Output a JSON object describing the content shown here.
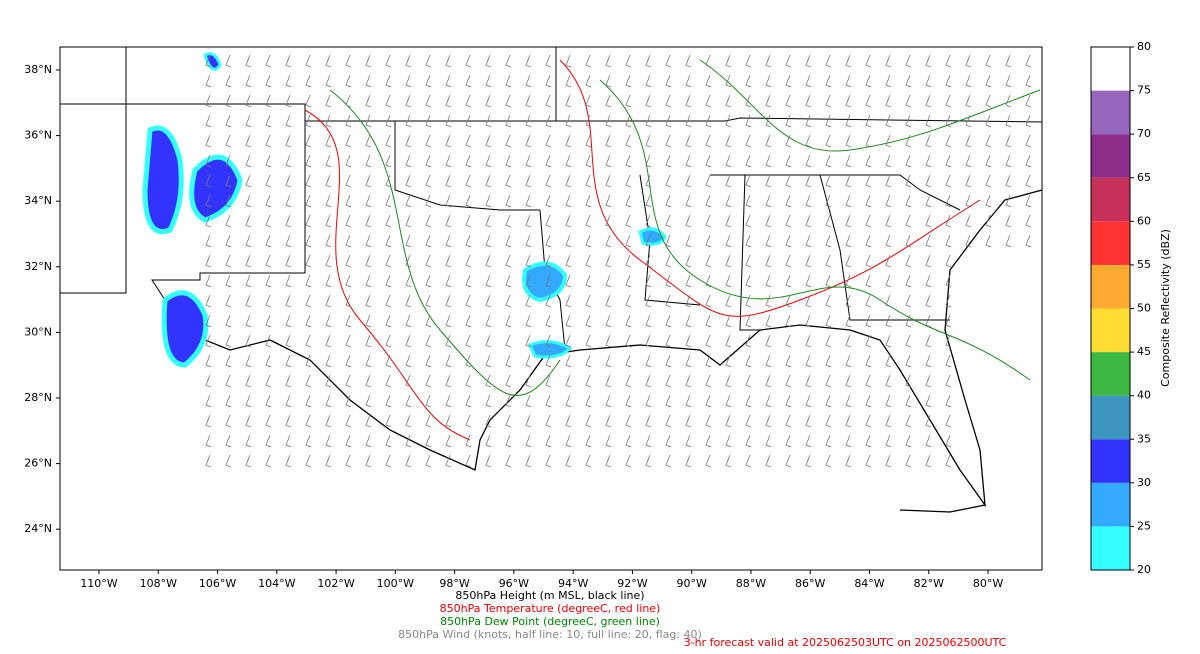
{
  "map": {
    "lat_labels": [
      "38°N",
      "36°N",
      "34°N",
      "32°N",
      "30°N",
      "28°N",
      "26°N",
      "24°N"
    ],
    "lon_labels": [
      "110°W",
      "108°W",
      "106°W",
      "104°W",
      "102°W",
      "100°W",
      "98°W",
      "96°W",
      "94°W",
      "92°W",
      "90°W",
      "88°W",
      "86°W",
      "84°W",
      "82°W",
      "80°W"
    ]
  },
  "colorbar": {
    "label": "Composite Reflectivity (dBZ)",
    "lim": [
      20,
      80
    ],
    "ticks": [
      20,
      25,
      30,
      35,
      40,
      45,
      50,
      55,
      60,
      65,
      70,
      75,
      80
    ],
    "colors": [
      "#33ffff",
      "#33aaff",
      "#3333ff",
      "#3c96c0",
      "#3cb843",
      "#ffdd33",
      "#ffaa33",
      "#ff3333",
      "#c8325a",
      "#8e2d8a",
      "#9467bd",
      "#ffffff"
    ]
  },
  "captions": [
    "850hPa Height (m MSL, black line)",
    "850hPa Temperature (degreeC, red line)",
    "850hPa Dew Point (degreeC, green line)",
    "850hPa Wind (knots, half line: 10, full line: 20, flag: 40)"
  ],
  "forecast_note": "3-hr forecast valid at 2025062503UTC on 2025062500UTC"
}
